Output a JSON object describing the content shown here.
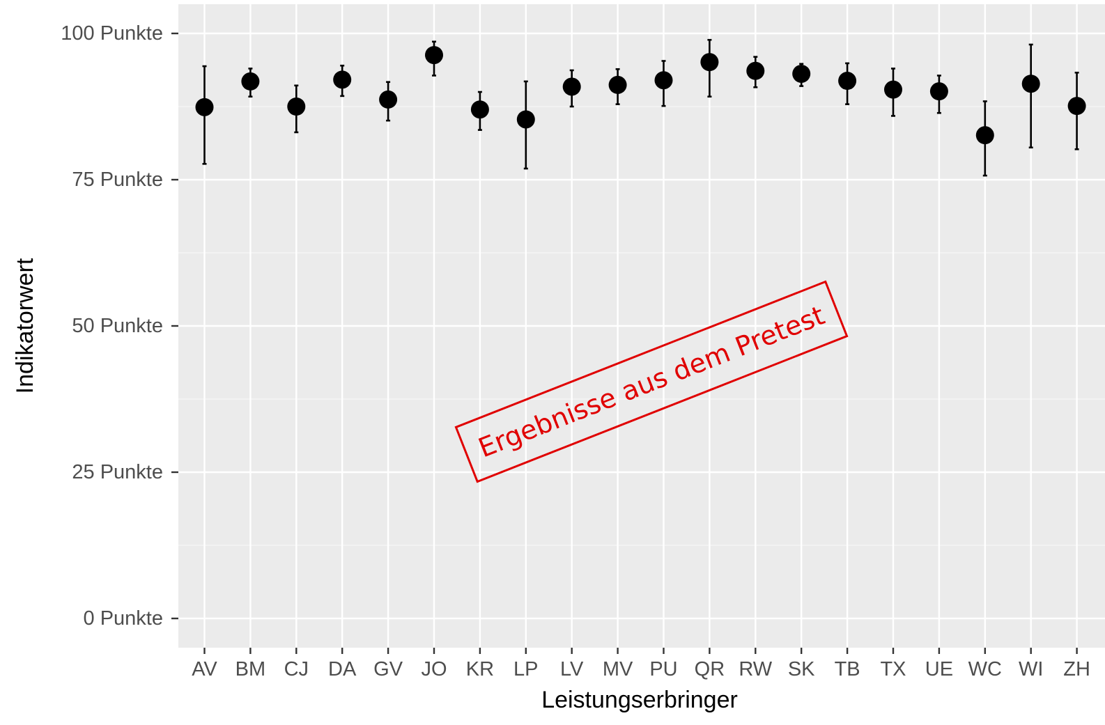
{
  "chart_data": {
    "type": "scatter",
    "xlabel": "Leistungserbringer",
    "ylabel": "Indikatorwert",
    "ylim": [
      -5,
      105
    ],
    "y_ticks": [
      {
        "value": 0,
        "label": "0 Punkte"
      },
      {
        "value": 25,
        "label": "25 Punkte"
      },
      {
        "value": 50,
        "label": "50 Punkte"
      },
      {
        "value": 75,
        "label": "75 Punkte"
      },
      {
        "value": 100,
        "label": "100 Punkte"
      }
    ],
    "categories": [
      "AV",
      "BM",
      "CJ",
      "DA",
      "GV",
      "JO",
      "KR",
      "LP",
      "LV",
      "MV",
      "PU",
      "QR",
      "RW",
      "SK",
      "TB",
      "TX",
      "UE",
      "WC",
      "WI",
      "ZH"
    ],
    "series": [
      {
        "values": [
          87.4,
          91.8,
          87.5,
          92.1,
          88.7,
          96.3,
          87.0,
          85.3,
          90.9,
          91.2,
          92.0,
          95.1,
          93.6,
          93.1,
          91.9,
          90.4,
          90.1,
          82.6,
          91.4,
          87.6
        ],
        "lower": [
          77.7,
          89.2,
          83.1,
          89.3,
          85.1,
          92.8,
          83.5,
          76.9,
          87.5,
          87.9,
          87.6,
          89.2,
          90.8,
          91.0,
          87.9,
          85.9,
          86.4,
          75.7,
          80.5,
          80.2
        ],
        "upper": [
          94.4,
          94.0,
          91.1,
          94.5,
          91.7,
          98.6,
          90.0,
          91.8,
          93.7,
          93.9,
          95.3,
          98.9,
          96.0,
          94.8,
          94.9,
          94.0,
          92.8,
          88.4,
          98.1,
          93.3
        ]
      }
    ],
    "grid": true,
    "background": "#ebebeb",
    "point_color": "#000000"
  },
  "annotation": {
    "text": "Ergebnisse aus dem Pretest",
    "color": "#e00000"
  }
}
